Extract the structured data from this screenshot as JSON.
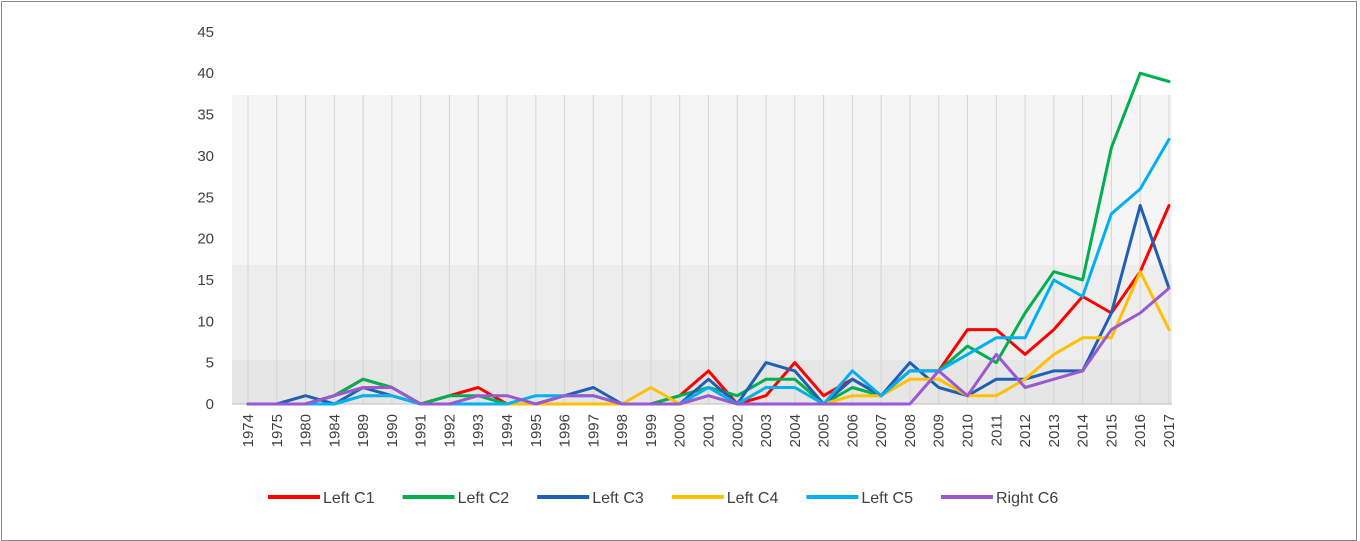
{
  "chart_data": {
    "type": "line",
    "title": "",
    "xlabel": "",
    "ylabel": "",
    "ylim": [
      0,
      45
    ],
    "yticks": [
      0,
      5,
      10,
      15,
      20,
      25,
      30,
      35,
      40,
      45
    ],
    "grid": "vertical lines per category",
    "legend_position": "bottom",
    "categories": [
      "1974",
      "1975",
      "1980",
      "1984",
      "1989",
      "1990",
      "1991",
      "1992",
      "1993",
      "1994",
      "1995",
      "1996",
      "1997",
      "1998",
      "1999",
      "2000",
      "2001",
      "2002",
      "2003",
      "2004",
      "2005",
      "2006",
      "2007",
      "2008",
      "2009",
      "2010",
      "2011",
      "2012",
      "2013",
      "2014",
      "2015",
      "2016",
      "2017"
    ],
    "series": [
      {
        "name": "Left C1",
        "color": "#ff0000",
        "values": [
          0,
          0,
          0,
          1,
          3,
          2,
          0,
          1,
          2,
          0,
          0,
          0,
          0,
          0,
          0,
          1,
          4,
          0,
          1,
          5,
          1,
          3,
          1,
          4,
          4,
          9,
          9,
          6,
          9,
          13,
          11,
          16,
          24
        ]
      },
      {
        "name": "Left C2",
        "color": "#00b050",
        "values": [
          0,
          0,
          0,
          1,
          3,
          2,
          0,
          1,
          1,
          0,
          0,
          0,
          0,
          0,
          0,
          1,
          2,
          1,
          3,
          3,
          0,
          2,
          1,
          4,
          4,
          7,
          5,
          11,
          16,
          15,
          31,
          40,
          39
        ]
      },
      {
        "name": "Left C3",
        "color": "#1f5fb4",
        "values": [
          0,
          0,
          1,
          0,
          2,
          1,
          0,
          0,
          0,
          0,
          0,
          1,
          2,
          0,
          0,
          0,
          3,
          0,
          5,
          4,
          0,
          3,
          1,
          5,
          2,
          1,
          3,
          3,
          4,
          4,
          11,
          24,
          14
        ]
      },
      {
        "name": "Left C4",
        "color": "#ffc000",
        "values": [
          0,
          0,
          0,
          0,
          1,
          1,
          0,
          0,
          0,
          0,
          0,
          0,
          0,
          0,
          2,
          0,
          1,
          0,
          2,
          2,
          0,
          1,
          1,
          3,
          3,
          1,
          1,
          3,
          6,
          8,
          8,
          16,
          9
        ]
      },
      {
        "name": "Left C5",
        "color": "#00b0f0",
        "values": [
          0,
          0,
          0,
          0,
          1,
          1,
          0,
          0,
          0,
          0,
          1,
          1,
          1,
          0,
          0,
          0,
          2,
          0,
          2,
          2,
          0,
          4,
          1,
          4,
          4,
          6,
          8,
          8,
          15,
          13,
          23,
          26,
          32
        ]
      },
      {
        "name": "Right C6",
        "color": "#9b59d0",
        "values": [
          0,
          0,
          0,
          1,
          2,
          2,
          0,
          0,
          1,
          1,
          0,
          1,
          1,
          0,
          0,
          0,
          1,
          0,
          0,
          0,
          0,
          0,
          0,
          0,
          4,
          1,
          6,
          2,
          3,
          4,
          9,
          11,
          14
        ]
      }
    ]
  }
}
